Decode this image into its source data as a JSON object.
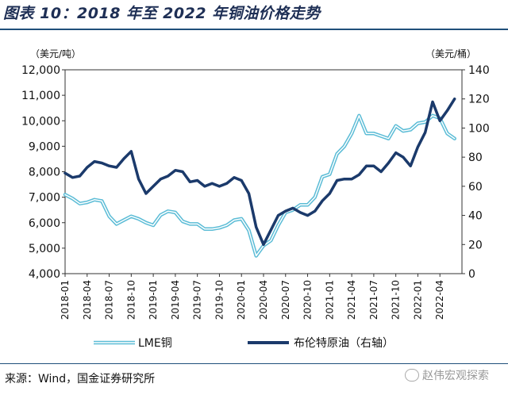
{
  "title": "图表 10：2018 年至 2022 年铜油价格走势",
  "source": "来源：Wind，国金证券研究所",
  "watermark": "赵伟宏观探索",
  "colors": {
    "copper": "#5bbcd6",
    "oil": "#1b3a6b",
    "title": "#1e2f55",
    "rule": "#1f4f7a"
  },
  "chart_data": {
    "type": "line",
    "left_unit": "（美元/吨）",
    "right_unit": "（美元/桶）",
    "left_ticks": [
      "12,000",
      "11,000",
      "10,000",
      "9,000",
      "8,000",
      "7,000",
      "6,000",
      "5,000",
      "4,000"
    ],
    "right_ticks": [
      "140",
      "120",
      "100",
      "80",
      "60",
      "40",
      "20",
      "0"
    ],
    "left_ylim": [
      4000,
      12000
    ],
    "right_ylim": [
      0,
      140
    ],
    "x_ticks": [
      "2018-01",
      "2018-04",
      "2018-07",
      "2018-10",
      "2019-01",
      "2019-04",
      "2019-07",
      "2019-10",
      "2020-01",
      "2020-04",
      "2020-07",
      "2020-10",
      "2021-01",
      "2021-04",
      "2021-07",
      "2021-10",
      "2022-01",
      "2022-04"
    ],
    "series": [
      {
        "name": "LME铜",
        "axis": "left",
        "x": [
          "2018-01",
          "2018-02",
          "2018-03",
          "2018-04",
          "2018-05",
          "2018-06",
          "2018-07",
          "2018-08",
          "2018-09",
          "2018-10",
          "2018-11",
          "2018-12",
          "2019-01",
          "2019-02",
          "2019-03",
          "2019-04",
          "2019-05",
          "2019-06",
          "2019-07",
          "2019-08",
          "2019-09",
          "2019-10",
          "2019-11",
          "2019-12",
          "2020-01",
          "2020-02",
          "2020-03",
          "2020-04",
          "2020-05",
          "2020-06",
          "2020-07",
          "2020-08",
          "2020-09",
          "2020-10",
          "2020-11",
          "2020-12",
          "2021-01",
          "2021-02",
          "2021-03",
          "2021-04",
          "2021-05",
          "2021-06",
          "2021-07",
          "2021-08",
          "2021-09",
          "2021-10",
          "2021-11",
          "2021-12",
          "2022-01",
          "2022-02",
          "2022-03",
          "2022-04",
          "2022-05",
          "2022-06"
        ],
        "values": [
          7100,
          6950,
          6750,
          6800,
          6900,
          6850,
          6250,
          5950,
          6100,
          6250,
          6150,
          6000,
          5900,
          6300,
          6450,
          6400,
          6050,
          5950,
          5950,
          5750,
          5750,
          5800,
          5900,
          6100,
          6150,
          5700,
          4700,
          5100,
          5300,
          5900,
          6400,
          6500,
          6700,
          6700,
          7000,
          7800,
          7900,
          8700,
          9000,
          9500,
          10200,
          9500,
          9500,
          9400,
          9300,
          9800,
          9600,
          9650,
          9900,
          9950,
          10200,
          10100,
          9500,
          9300
        ]
      },
      {
        "name": "布伦特原油（右轴）",
        "axis": "right",
        "x": [
          "2018-01",
          "2018-02",
          "2018-03",
          "2018-04",
          "2018-05",
          "2018-06",
          "2018-07",
          "2018-08",
          "2018-09",
          "2018-10",
          "2018-11",
          "2018-12",
          "2019-01",
          "2019-02",
          "2019-03",
          "2019-04",
          "2019-05",
          "2019-06",
          "2019-07",
          "2019-08",
          "2019-09",
          "2019-10",
          "2019-11",
          "2019-12",
          "2020-01",
          "2020-02",
          "2020-03",
          "2020-04",
          "2020-05",
          "2020-06",
          "2020-07",
          "2020-08",
          "2020-09",
          "2020-10",
          "2020-11",
          "2020-12",
          "2021-01",
          "2021-02",
          "2021-03",
          "2021-04",
          "2021-05",
          "2021-06",
          "2021-07",
          "2021-08",
          "2021-09",
          "2021-10",
          "2021-11",
          "2021-12",
          "2022-01",
          "2022-02",
          "2022-03",
          "2022-04",
          "2022-05",
          "2022-06"
        ],
        "values": [
          69,
          66,
          67,
          73,
          77,
          76,
          74,
          73,
          79,
          84,
          65,
          55,
          60,
          65,
          67,
          71,
          70,
          63,
          64,
          60,
          62,
          60,
          62,
          66,
          64,
          55,
          32,
          20,
          30,
          40,
          43,
          45,
          42,
          40,
          43,
          50,
          55,
          64,
          65,
          65,
          68,
          74,
          74,
          70,
          76,
          83,
          80,
          74,
          87,
          97,
          118,
          105,
          112,
          120
        ]
      }
    ]
  }
}
